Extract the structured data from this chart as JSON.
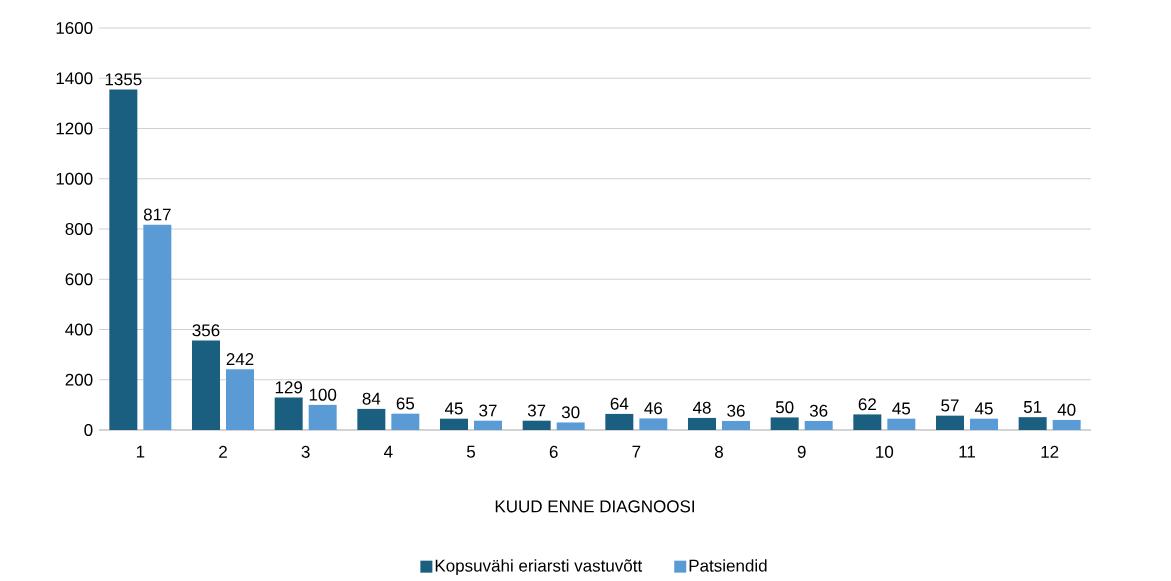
{
  "chart_data": {
    "type": "bar",
    "xlabel": "KUUD ENNE DIAGNOOSI",
    "categories": [
      "1",
      "2",
      "3",
      "4",
      "5",
      "6",
      "7",
      "8",
      "9",
      "10",
      "11",
      "12"
    ],
    "series": [
      {
        "name": "Kopsuvähi eriarsti vastuvõtt",
        "color": "#1a5e80",
        "values": [
          1355,
          356,
          129,
          84,
          45,
          37,
          64,
          48,
          50,
          62,
          57,
          51
        ]
      },
      {
        "name": "Patsiendid",
        "color": "#5b9bd5",
        "values": [
          817,
          242,
          100,
          65,
          37,
          30,
          46,
          36,
          36,
          45,
          45,
          40
        ]
      }
    ],
    "ylim": [
      0,
      1600
    ],
    "yticks": [
      0,
      200,
      400,
      600,
      800,
      1000,
      1200,
      1400,
      1600
    ],
    "grid": "y",
    "legend": "bottom",
    "data_labels": true
  }
}
